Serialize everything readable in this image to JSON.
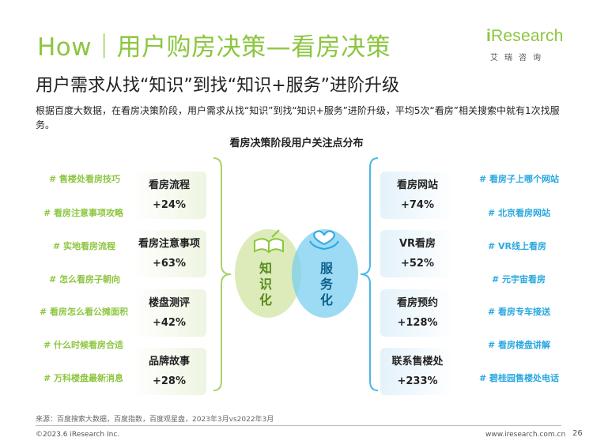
{
  "header": {
    "title": "How｜用户购房决策—看房决策",
    "subtitle": "用户需求从找“知识”到找“知识+服务”进阶升级",
    "logo_text": "Research",
    "logo_i": "i",
    "logo_sub": "艾瑞咨询",
    "accent_color": "#8cc63f",
    "blue_color": "#29a8df"
  },
  "description": "根据百度大数据，在看房决策阶段，用户需求从找“知识”到找“知识+服务”进阶升级，平均5次“看房”相关搜索中就有1次找服务。",
  "chart_title": "看房决策阶段用户关注点分布",
  "left_keywords": [
    "# 售楼处看房技巧",
    "# 看房注意事项攻略",
    "# 实地看房流程",
    "# 怎么看房子朝向",
    "# 看房怎么看公摊面积",
    "# 什么时候看房合适",
    "# 万科楼盘最新消息"
  ],
  "right_keywords": [
    "# 看房子上哪个网站",
    "# 北京看房网站",
    "# VR线上看房",
    "# 元宇宙看房",
    "# 看房专车接送",
    "# 看房楼盘讲解",
    "# 碧桂园售楼处电话"
  ],
  "left_cards": [
    {
      "name": "看房流程",
      "value": "+24%"
    },
    {
      "name": "看房注意事项",
      "value": "+63%"
    },
    {
      "name": "楼盘测评",
      "value": "+42%"
    },
    {
      "name": "品牌故事",
      "value": "+28%"
    }
  ],
  "right_cards": [
    {
      "name": "看房网站",
      "value": "+74%"
    },
    {
      "name": "VR看房",
      "value": "+52%"
    },
    {
      "name": "看房预约",
      "value": "+128%"
    },
    {
      "name": "联系售楼处",
      "value": "+233%"
    }
  ],
  "center": {
    "left_label": [
      "知",
      "识",
      "化"
    ],
    "right_label": [
      "服",
      "务",
      "化"
    ],
    "left_icon": "book-icon",
    "right_icon": "heart-hand-icon"
  },
  "footer": {
    "source": "来源：百度搜索大数据，百度指数，百度观星盘，2023年3月vs2022年3月",
    "copyright": "©2023.6 iResearch Inc.",
    "site": "www.iresearch.com.cn",
    "page": "26"
  }
}
